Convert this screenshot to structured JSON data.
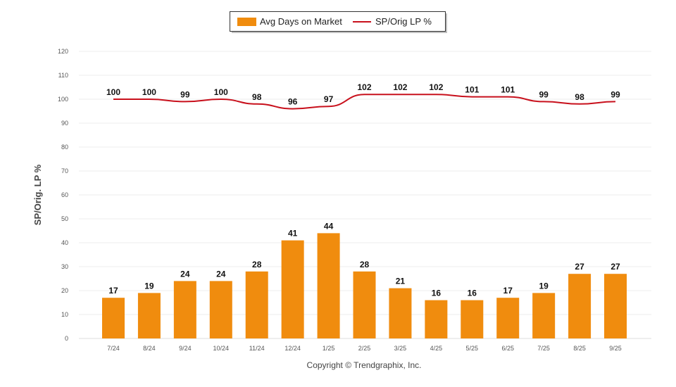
{
  "chart_data": {
    "type": "bar+line",
    "categories": [
      "7/24",
      "8/24",
      "9/24",
      "10/24",
      "11/24",
      "12/24",
      "1/25",
      "2/25",
      "3/25",
      "4/25",
      "5/25",
      "6/25",
      "7/25",
      "8/25",
      "9/25"
    ],
    "series": [
      {
        "name": "Avg Days on Market",
        "type": "bar",
        "color": "#f08c0e",
        "values": [
          17,
          19,
          24,
          24,
          28,
          41,
          44,
          28,
          21,
          16,
          16,
          17,
          19,
          27,
          27
        ]
      },
      {
        "name": "SP/Orig LP %",
        "type": "line",
        "color": "#c8101c",
        "values": [
          100,
          100,
          99,
          100,
          98,
          96,
          97,
          102,
          102,
          102,
          101,
          101,
          99,
          98,
          99
        ]
      }
    ],
    "ylabel": "SP/Orig. LP %",
    "ylim": [
      0,
      120
    ],
    "yticks": [
      0,
      10,
      20,
      30,
      40,
      50,
      60,
      70,
      80,
      90,
      100,
      110,
      120
    ],
    "grid": true,
    "legend": "top-center"
  },
  "footer": {
    "copyright": "Copyright © Trendgraphix, Inc."
  }
}
